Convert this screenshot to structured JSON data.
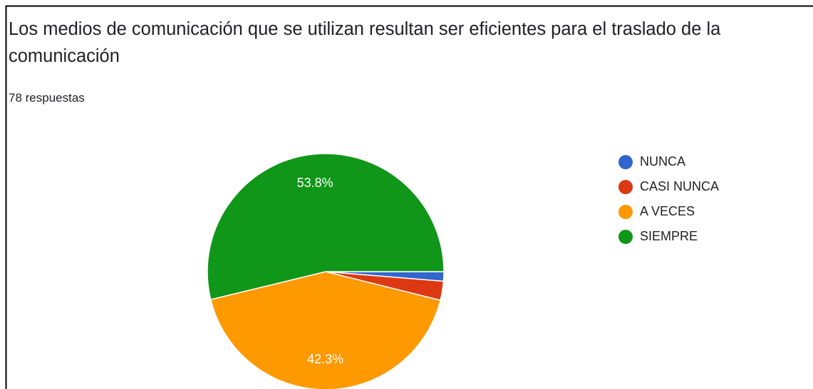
{
  "chart_data": {
    "type": "pie",
    "title": "Los medios de comunicación que se utilizan resultan ser eficientes para el traslado de la comunicación",
    "subtitle": "78 respuestas",
    "categories": [
      "NUNCA",
      "CASI NUNCA",
      "A VECES",
      "SIEMPRE"
    ],
    "values": [
      1.3,
      2.6,
      42.3,
      53.8
    ],
    "value_labels": [
      null,
      null,
      "42.3%",
      "53.8%"
    ],
    "colors": [
      "#3366cc",
      "#dc3912",
      "#ff9900",
      "#109618"
    ],
    "legend": "right"
  }
}
